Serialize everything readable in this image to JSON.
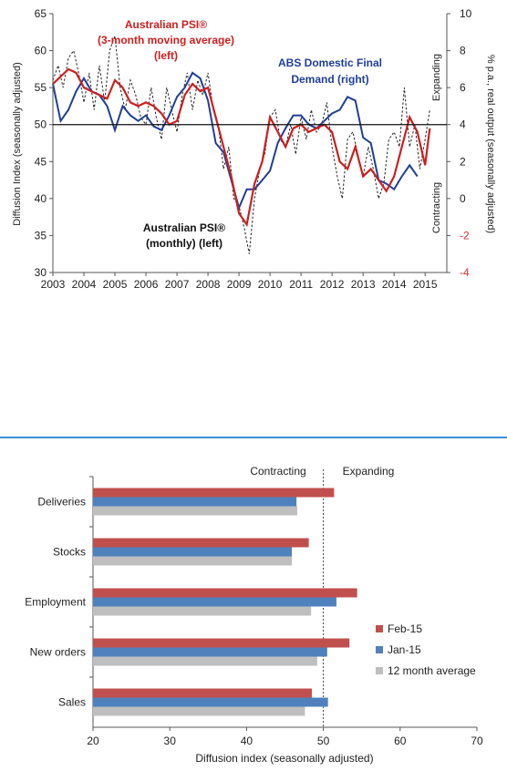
{
  "colors": {
    "psi_red": "#cc1f1f",
    "psi_monthly": "#222222",
    "abs_blue": "#1f3f96",
    "feb_red": "#c0504d",
    "jan_blue": "#4f81bd",
    "avg_grey": "#bfbfbf",
    "separator": "#3a8fd8"
  },
  "chart_data": [
    {
      "type": "line",
      "ylabel": "Diffusion Index (seasonally adjusted)",
      "y2label": "% p.a., real output (seasonally adjusted)",
      "ylim": [
        30,
        65
      ],
      "y2lim": [
        -4,
        10
      ],
      "xlim": [
        2003,
        2015.7
      ],
      "x_ticks": [
        "2003",
        "2004",
        "2005",
        "2006",
        "2007",
        "2008",
        "2009",
        "2010",
        "2011",
        "2012",
        "2013",
        "2014",
        "2015"
      ],
      "y_ticks": [
        "30",
        "35",
        "40",
        "45",
        "50",
        "55",
        "60",
        "65"
      ],
      "y2_ticks": [
        "-4",
        "-2",
        "0",
        "2",
        "4",
        "6",
        "8",
        "10"
      ],
      "reference_line": 50,
      "side_labels": {
        "expanding": "Expanding",
        "contracting": "Contracting"
      },
      "annotations": {
        "psi_ma": [
          "Australian PSI®",
          "(3-month moving average)",
          "(left)"
        ],
        "abs": [
          "ABS Domestic Final",
          "Demand (right)"
        ],
        "psi_monthly": [
          "Australian PSI®",
          "(monthly) (left)"
        ]
      },
      "series": [
        {
          "key": "psi_ma",
          "axis": "left",
          "x": [
            2003.0,
            2003.25,
            2003.5,
            2003.75,
            2004.0,
            2004.25,
            2004.5,
            2004.75,
            2005.0,
            2005.25,
            2005.5,
            2005.75,
            2006.0,
            2006.25,
            2006.5,
            2006.75,
            2007.0,
            2007.25,
            2007.5,
            2007.75,
            2008.0,
            2008.25,
            2008.5,
            2008.75,
            2009.0,
            2009.25,
            2009.5,
            2009.75,
            2010.0,
            2010.25,
            2010.5,
            2010.75,
            2011.0,
            2011.25,
            2011.5,
            2011.75,
            2012.0,
            2012.25,
            2012.5,
            2012.75,
            2013.0,
            2013.25,
            2013.5,
            2013.75,
            2014.0,
            2014.25,
            2014.5,
            2014.75,
            2015.0,
            2015.15
          ],
          "y": [
            55.5,
            56.5,
            57.5,
            57,
            55,
            54.5,
            54,
            53.5,
            56,
            55,
            53,
            52.5,
            53,
            52.5,
            51.5,
            50,
            50.5,
            54,
            55.5,
            54.5,
            55,
            51,
            47,
            43,
            38,
            36.5,
            42,
            45,
            51,
            49,
            47,
            49.5,
            50,
            49,
            49.5,
            50,
            49,
            45,
            44,
            47,
            43,
            44,
            42.5,
            41,
            43,
            47,
            51,
            49,
            44.5,
            49.5
          ]
        },
        {
          "key": "psi_monthly",
          "axis": "left",
          "x": [
            2003.0,
            2003.17,
            2003.33,
            2003.5,
            2003.67,
            2003.83,
            2004.0,
            2004.17,
            2004.33,
            2004.5,
            2004.67,
            2004.83,
            2005.0,
            2005.17,
            2005.33,
            2005.5,
            2005.67,
            2005.83,
            2006.0,
            2006.17,
            2006.33,
            2006.5,
            2006.67,
            2006.83,
            2007.0,
            2007.17,
            2007.33,
            2007.5,
            2007.67,
            2007.83,
            2008.0,
            2008.17,
            2008.33,
            2008.5,
            2008.67,
            2008.83,
            2009.0,
            2009.17,
            2009.33,
            2009.5,
            2009.67,
            2009.83,
            2010.0,
            2010.17,
            2010.33,
            2010.5,
            2010.67,
            2010.83,
            2011.0,
            2011.17,
            2011.33,
            2011.5,
            2011.67,
            2011.83,
            2012.0,
            2012.17,
            2012.33,
            2012.5,
            2012.67,
            2012.83,
            2013.0,
            2013.17,
            2013.33,
            2013.5,
            2013.67,
            2013.83,
            2014.0,
            2014.17,
            2014.33,
            2014.5,
            2014.67,
            2014.83,
            2015.0,
            2015.15
          ],
          "y": [
            56,
            58,
            55,
            59,
            60,
            57,
            53,
            57,
            52,
            58,
            53,
            60,
            62,
            55,
            52,
            56,
            54,
            51,
            50,
            55,
            51,
            48,
            55,
            52,
            49,
            54,
            57,
            52,
            56,
            54,
            57,
            52,
            50,
            44,
            47,
            40,
            39,
            36,
            32.5,
            40,
            44,
            46,
            51,
            52,
            48,
            47,
            50,
            46,
            51,
            48,
            52,
            49,
            50,
            53,
            47,
            43,
            40,
            48,
            49,
            46,
            43,
            47,
            44,
            40,
            42,
            48,
            49,
            47,
            55,
            47,
            50,
            44,
            48,
            52
          ]
        },
        {
          "key": "abs",
          "axis": "right",
          "x": [
            2003.0,
            2003.25,
            2003.5,
            2003.75,
            2004.0,
            2004.25,
            2004.5,
            2004.75,
            2005.0,
            2005.25,
            2005.5,
            2005.75,
            2006.0,
            2006.25,
            2006.5,
            2006.75,
            2007.0,
            2007.25,
            2007.5,
            2007.75,
            2008.0,
            2008.25,
            2008.5,
            2008.75,
            2009.0,
            2009.25,
            2009.5,
            2009.75,
            2010.0,
            2010.25,
            2010.5,
            2010.75,
            2011.0,
            2011.25,
            2011.5,
            2011.75,
            2012.0,
            2012.25,
            2012.5,
            2012.75,
            2013.0,
            2013.25,
            2013.5,
            2013.75,
            2014.0,
            2014.25,
            2014.5,
            2014.75
          ],
          "y": [
            6.2,
            4.2,
            4.8,
            5.8,
            6.5,
            5.8,
            5.6,
            5,
            3.7,
            5,
            4.5,
            4.2,
            4.5,
            3.9,
            3.7,
            4.5,
            5.5,
            6,
            6.8,
            6.5,
            5.3,
            3,
            2.5,
            1,
            -0.5,
            0.5,
            0.5,
            1,
            1.5,
            3,
            3.8,
            4.5,
            4.5,
            4,
            3.8,
            4.2,
            4.6,
            4.8,
            5.5,
            5.3,
            3.3,
            3,
            1,
            0.8,
            0.5,
            1.2,
            1.8,
            1.2
          ]
        }
      ]
    },
    {
      "type": "bar",
      "orientation": "horizontal",
      "categories": [
        "Deliveries",
        "Stocks",
        "Employment",
        "New orders",
        "Sales"
      ],
      "xlabel": "Diffusion index (seasonally adjusted)",
      "xlim": [
        20,
        70
      ],
      "x_ticks": [
        "20",
        "30",
        "40",
        "50",
        "60",
        "70"
      ],
      "reference_line": 50,
      "region_labels": {
        "left": "Contracting",
        "right": "Expanding"
      },
      "series": [
        {
          "name": "Feb-15",
          "values": [
            51.4,
            48.1,
            54.4,
            53.4,
            48.5
          ]
        },
        {
          "name": "Jan-15",
          "values": [
            46.5,
            45.9,
            51.7,
            50.5,
            50.6
          ]
        },
        {
          "name": "12 month average",
          "values": [
            46.6,
            45.9,
            48.4,
            49.2,
            47.6
          ]
        }
      ]
    }
  ]
}
